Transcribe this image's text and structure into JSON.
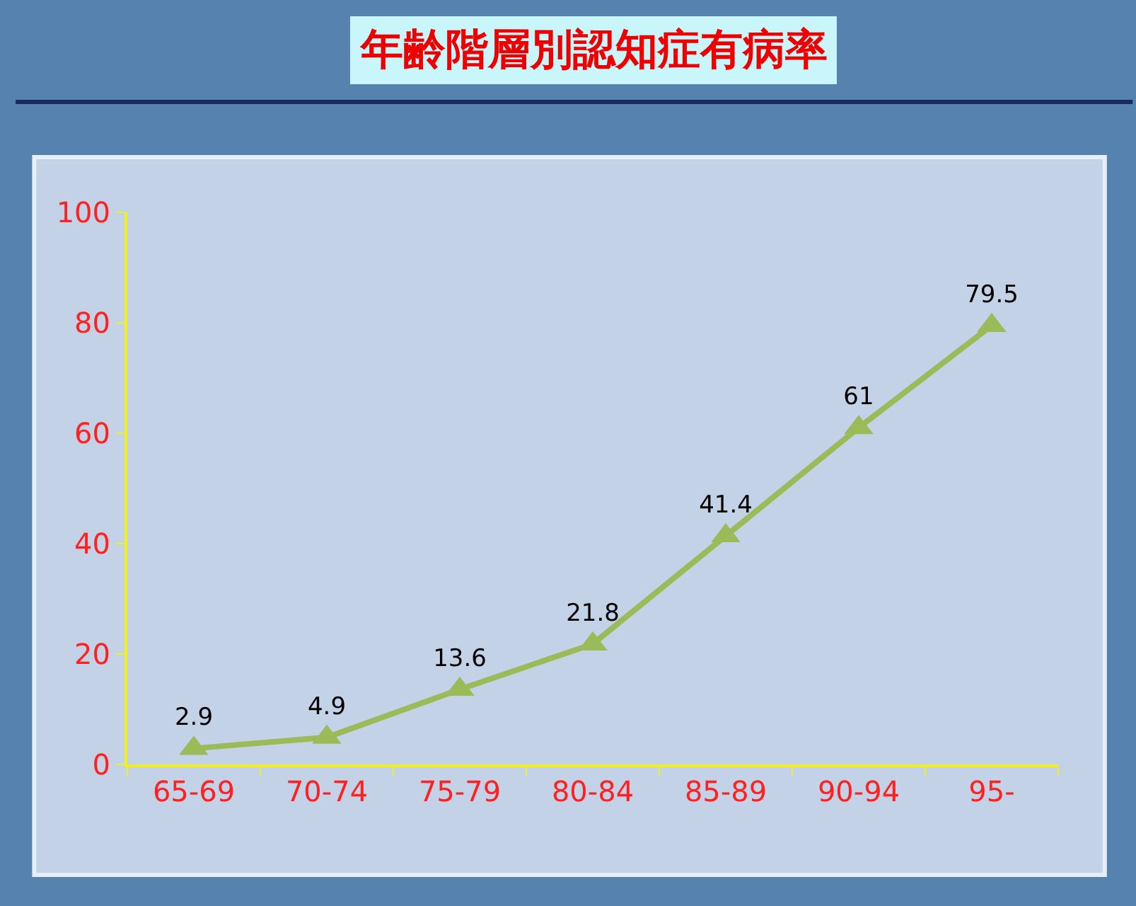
{
  "chart_data": {
    "type": "line",
    "title": "年齢階層別認知症有病率",
    "categories": [
      "65-69",
      "70-74",
      "75-79",
      "80-84",
      "85-89",
      "90-94",
      "95-"
    ],
    "series": [
      {
        "color": "#9bbb59",
        "values": [
          2.9,
          4.9,
          13.6,
          21.8,
          41.4,
          61,
          79.5
        ]
      }
    ],
    "ylim": [
      0,
      100
    ],
    "yticks": [
      0,
      20,
      40,
      60,
      80,
      100
    ],
    "grid": false,
    "marker": "triangle",
    "line_style": "solid",
    "data_labels": true
  }
}
